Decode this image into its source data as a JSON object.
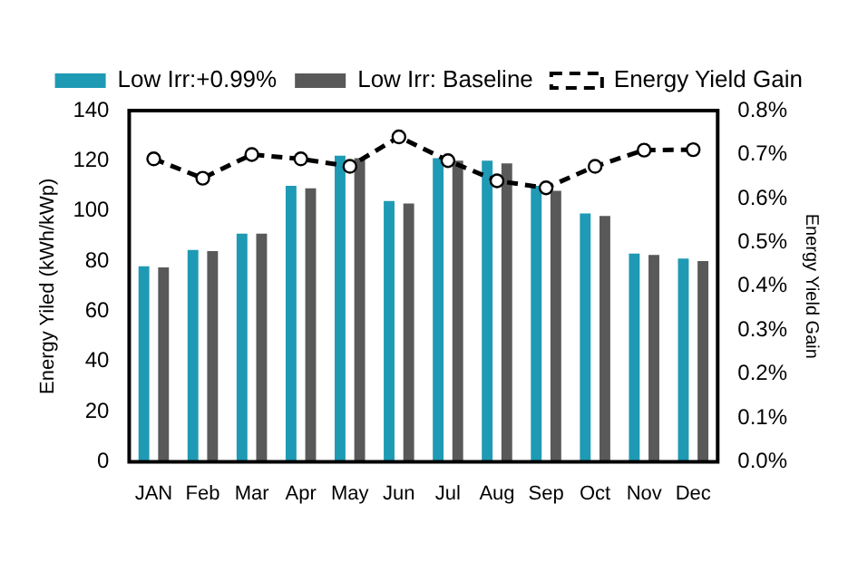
{
  "chart_data": {
    "type": "bar",
    "categories": [
      "JAN",
      "Feb",
      "Mar",
      "Apr",
      "May",
      "Jun",
      "Jul",
      "Aug",
      "Sep",
      "Oct",
      "Nov",
      "Dec"
    ],
    "series": [
      {
        "name": "Low Irr:+0.99%",
        "color": "#1f9ab4",
        "values": [
          78,
          84.5,
          91,
          110,
          122,
          104,
          121,
          120,
          110,
          99,
          83,
          81
        ]
      },
      {
        "name": "Low Irr: Baseline",
        "color": "#595959",
        "values": [
          77.5,
          84,
          91,
          109,
          121,
          103,
          120,
          119,
          108,
          98,
          82.5,
          80
        ]
      },
      {
        "name": "Energy Yield Gain",
        "type": "line",
        "axis": "y2",
        "color": "#000000",
        "marker": "circle",
        "line_style": "dashed",
        "values": [
          0.69,
          0.646,
          0.7,
          0.69,
          0.673,
          0.74,
          0.686,
          0.64,
          0.624,
          0.673,
          0.71,
          0.711
        ]
      }
    ],
    "ylabel": "Energy Yiled (kWh/kWp)",
    "y2label": "Energy Yield Gain",
    "ylim": [
      0,
      140
    ],
    "yticks": [
      0,
      20,
      40,
      60,
      80,
      100,
      120,
      140
    ],
    "y2lim": [
      0,
      0.8
    ],
    "y2ticks": [
      {
        "value": 0,
        "label": "0.0%"
      },
      {
        "value": 0.1,
        "label": "0.1%"
      },
      {
        "value": 0.2,
        "label": "0.2%"
      },
      {
        "value": 0.3,
        "label": "0.3%"
      },
      {
        "value": 0.4,
        "label": "0.4%"
      },
      {
        "value": 0.5,
        "label": "0.5%"
      },
      {
        "value": 0.6,
        "label": "0.6%"
      },
      {
        "value": 0.7,
        "label": "0.7%"
      },
      {
        "value": 0.8,
        "label": "0.8%"
      }
    ],
    "grid": false,
    "legend": "top"
  }
}
